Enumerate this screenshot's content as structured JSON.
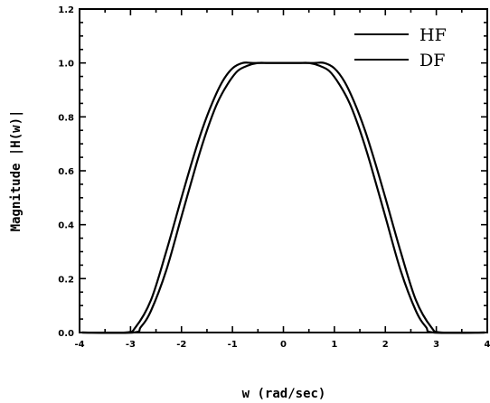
{
  "chart_data": {
    "type": "line",
    "xlabel": "w  (rad/sec)",
    "ylabel": "Magnitude |H(w)|",
    "xlim": [
      -4,
      4
    ],
    "ylim": [
      0.0,
      1.2
    ],
    "x_ticks": [
      "-4",
      "-3",
      "-2",
      "-1",
      "0",
      "1",
      "2",
      "3",
      "4"
    ],
    "y_ticks": [
      "0.0",
      "0.2",
      "0.4",
      "0.6",
      "0.8",
      "1.0",
      "1.2"
    ],
    "grid": false,
    "legend_position": "top-right",
    "series": [
      {
        "name": "HF",
        "x": [
          -3.1,
          -2.9,
          -2.6,
          -2.3,
          -2.0,
          -1.8,
          -1.6,
          -1.4,
          -1.2,
          -1.0,
          -0.8,
          -0.6,
          -0.3,
          0.0,
          0.3,
          0.6,
          0.8,
          1.0,
          1.2,
          1.4,
          1.6,
          1.8,
          2.0,
          2.3,
          2.6,
          2.9,
          3.1
        ],
        "y": [
          0.0,
          0.02,
          0.12,
          0.3,
          0.5,
          0.63,
          0.75,
          0.85,
          0.93,
          0.98,
          1.0,
          1.0,
          1.0,
          1.0,
          1.0,
          1.0,
          1.0,
          0.98,
          0.93,
          0.85,
          0.75,
          0.63,
          0.5,
          0.3,
          0.12,
          0.02,
          0.0
        ]
      },
      {
        "name": "DF",
        "x": [
          -2.95,
          -2.8,
          -2.6,
          -2.3,
          -2.0,
          -1.7,
          -1.5,
          -1.3,
          -1.1,
          -0.9,
          -0.7,
          -0.5,
          -0.3,
          0.0,
          0.3,
          0.5,
          0.7,
          0.9,
          1.1,
          1.3,
          1.5,
          1.7,
          2.0,
          2.3,
          2.6,
          2.8,
          2.95
        ],
        "y": [
          0.0,
          0.02,
          0.08,
          0.23,
          0.43,
          0.63,
          0.75,
          0.85,
          0.92,
          0.97,
          0.99,
          1.0,
          1.0,
          1.0,
          1.0,
          1.0,
          0.99,
          0.97,
          0.92,
          0.85,
          0.75,
          0.63,
          0.43,
          0.23,
          0.08,
          0.02,
          0.0
        ]
      }
    ]
  }
}
